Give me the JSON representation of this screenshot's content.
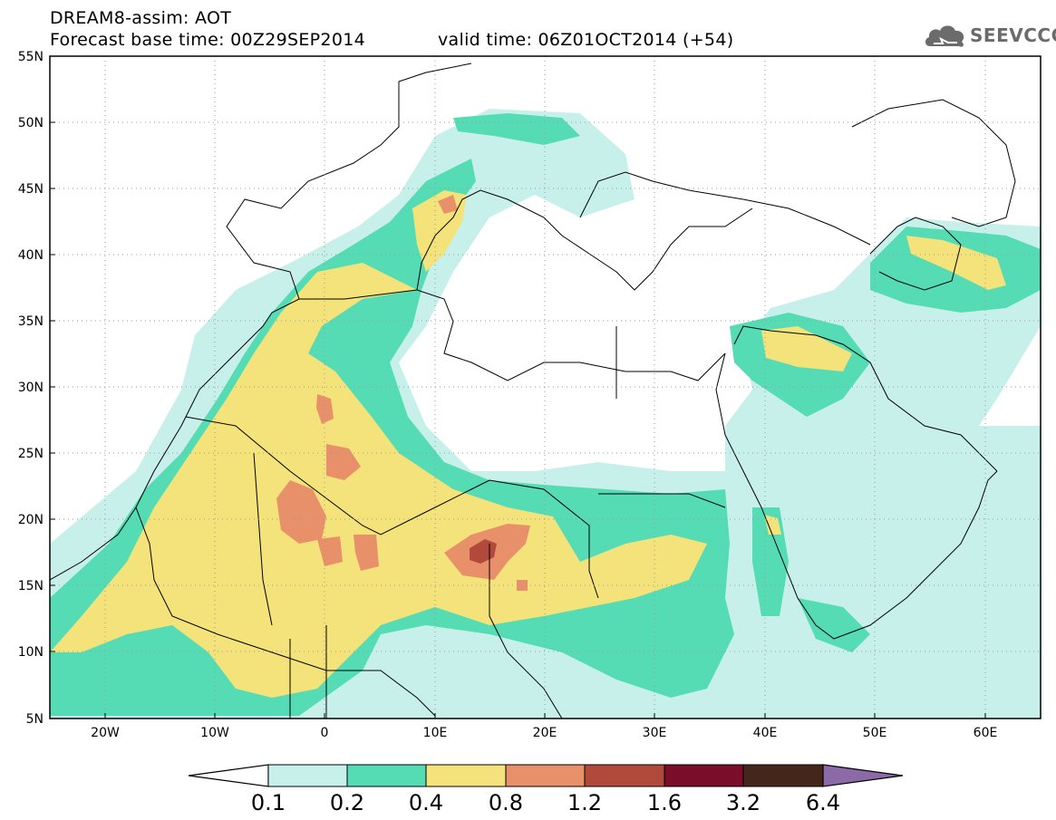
{
  "header": {
    "title": "DREAM8-assim: AOT",
    "base_time": "Forecast base time: 00Z29SEP2014",
    "valid_time": "valid time: 06Z01OCT2014 (+54)",
    "logo_text": "SEEVCCC"
  },
  "map": {
    "lon_range": [
      -25,
      65
    ],
    "lat_range": [
      5,
      55
    ],
    "lat_ticks": [
      "55N",
      "50N",
      "45N",
      "40N",
      "35N",
      "30N",
      "25N",
      "20N",
      "15N",
      "10N",
      "5N"
    ],
    "lon_ticks": [
      "20W",
      "10W",
      "0",
      "10E",
      "20E",
      "30E",
      "40E",
      "50E",
      "60E"
    ],
    "grid": "dotted"
  },
  "legend": {
    "bins": [
      {
        "color": "#c8f0ea"
      },
      {
        "color": "#55dcb4"
      },
      {
        "color": "#f4e27a"
      },
      {
        "color": "#e8906a"
      },
      {
        "color": "#b24a3c"
      },
      {
        "color": "#7a0d2a"
      },
      {
        "color": "#45261a"
      },
      {
        "color": "#8c6aa8"
      }
    ],
    "labels": [
      "0.1",
      "0.2",
      "0.4",
      "0.8",
      "1.2",
      "1.6",
      "3.2",
      "6.4"
    ]
  },
  "colors": {
    "aot_0_1": "#c8f0ea",
    "aot_0_2": "#55dcb4",
    "aot_0_4": "#f4e27a",
    "aot_0_8": "#e8906a",
    "aot_1_2": "#b24a3c",
    "aot_1_6": "#7a0d2a",
    "aot_3_2": "#45261a",
    "aot_6_4": "#8c6aa8"
  }
}
